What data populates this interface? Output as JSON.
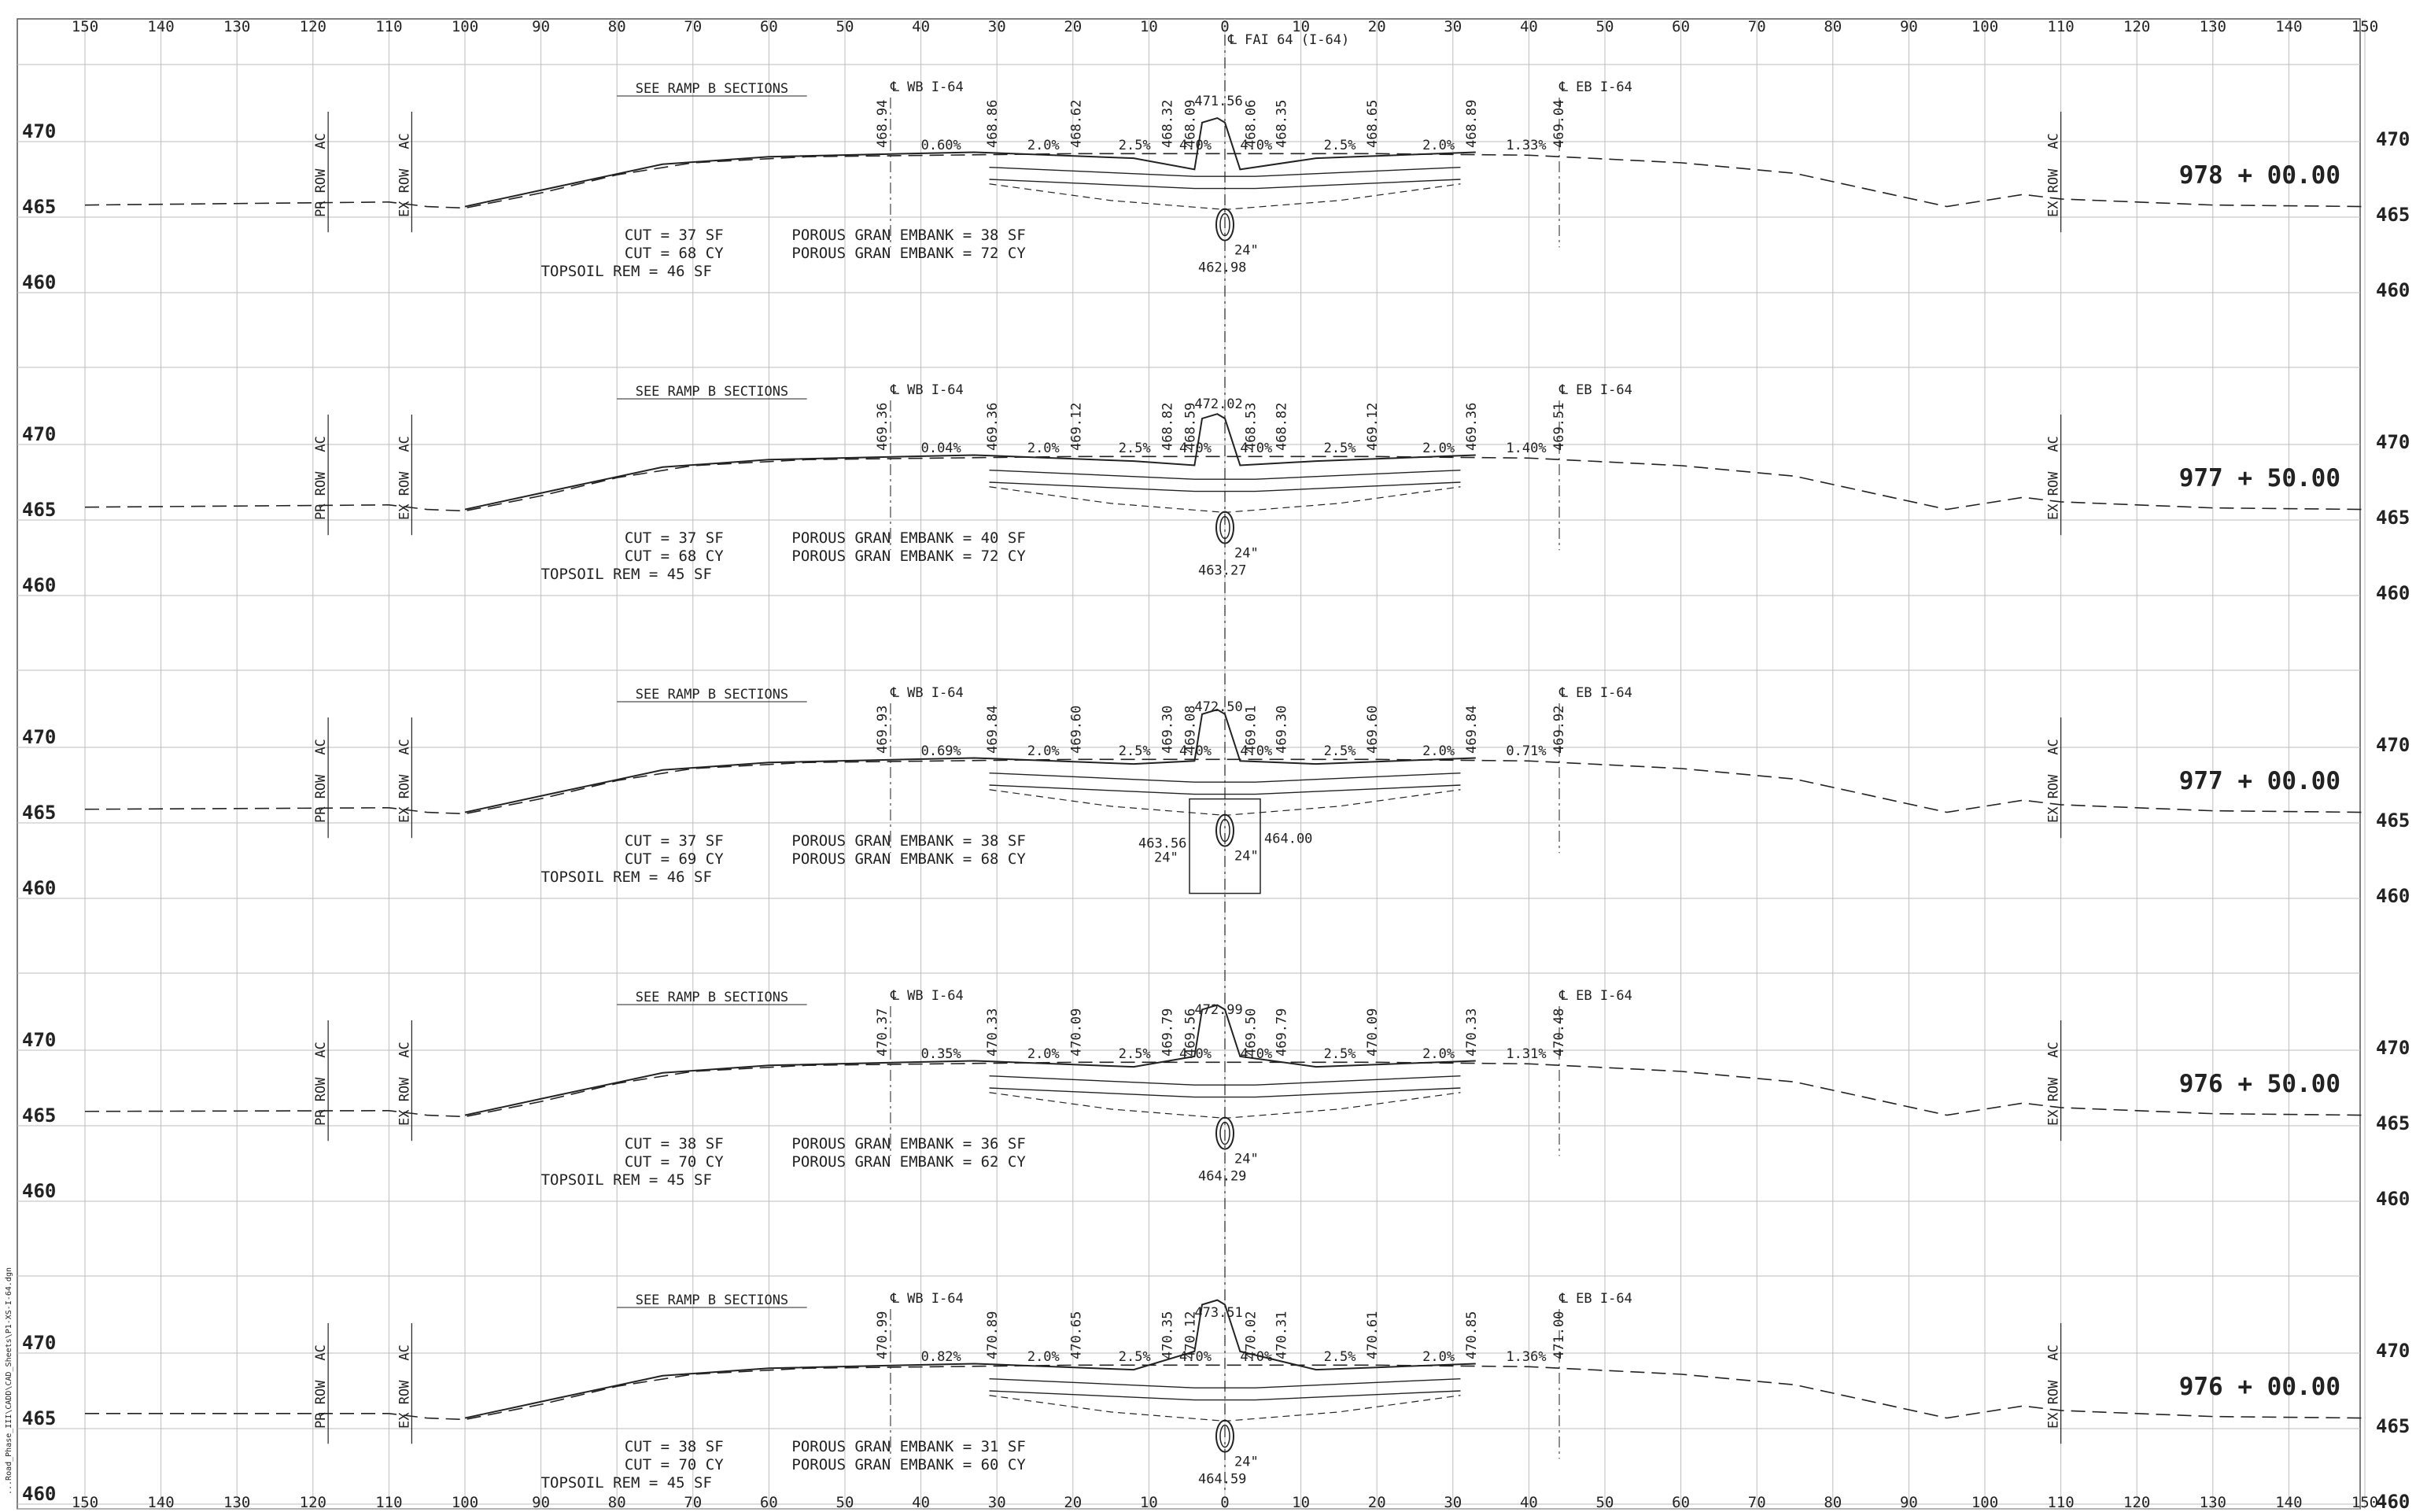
{
  "sheet": {
    "centerline_label": "℄ FAI 64 (I-64)",
    "file_path": "...Road_Phase_III\\CADD\\CAD_Sheets\\P1-XS-I-64.dgn",
    "offset_ticks": [
      "150",
      "140",
      "130",
      "120",
      "110",
      "100",
      "90",
      "80",
      "70",
      "60",
      "50",
      "40",
      "30",
      "20",
      "10",
      "0",
      "10",
      "20",
      "30",
      "40",
      "50",
      "60",
      "70",
      "80",
      "90",
      "100",
      "110",
      "120",
      "130",
      "140",
      "150"
    ],
    "offset_values": [
      -150,
      -140,
      -130,
      -120,
      -110,
      -100,
      -90,
      -80,
      -70,
      -60,
      -50,
      -40,
      -30,
      -20,
      -10,
      0,
      10,
      20,
      30,
      40,
      50,
      60,
      70,
      80,
      90,
      100,
      110,
      120,
      130,
      140,
      150
    ],
    "colors": {
      "grid": "#bdbdbd",
      "ink": "#222222",
      "background": "#ffffff"
    }
  },
  "sections": [
    {
      "station": "978 + 00.00",
      "elev_labels": [
        "470",
        "465",
        "460"
      ],
      "ramp_note": "SEE RAMP B SECTIONS",
      "wb_label": "℄ WB I-64",
      "eb_label": "℄ EB I-64",
      "pr_row": "PR ROW",
      "ex_row": "EX ROW",
      "ac": "AC",
      "crown": "471.56",
      "left_elevs": [
        "468.94",
        "468.86",
        "468.62",
        "468.32",
        "468.09"
      ],
      "right_elevs": [
        "468.06",
        "468.35",
        "468.65",
        "468.89",
        "469.04"
      ],
      "slopes": [
        "0.60%",
        "2.0%",
        "2.5%",
        "4.0%",
        "4.0%",
        "2.5%",
        "2.0%",
        "1.33%"
      ],
      "cut_sf": "CUT = 37 SF",
      "cut_cy": "CUT = 68 CY",
      "topsoil": "TOPSOIL REM = 46 SF",
      "porous_sf": "POROUS GRAN EMBANK = 38 SF",
      "porous_cy": "POROUS GRAN EMBANK = 72 CY",
      "pipe_size": "24\"",
      "pipe_elev": "462.98"
    },
    {
      "station": "977 + 50.00",
      "elev_labels": [
        "470",
        "465",
        "460"
      ],
      "ramp_note": "SEE RAMP B SECTIONS",
      "wb_label": "℄ WB I-64",
      "eb_label": "℄ EB I-64",
      "pr_row": "PR ROW",
      "ex_row": "EX ROW",
      "ac": "AC",
      "crown": "472.02",
      "left_elevs": [
        "469.36",
        "469.36",
        "469.12",
        "468.82",
        "468.59"
      ],
      "right_elevs": [
        "468.53",
        "468.82",
        "469.12",
        "469.36",
        "469.51"
      ],
      "slopes": [
        "0.04%",
        "2.0%",
        "2.5%",
        "4.0%",
        "4.0%",
        "2.5%",
        "2.0%",
        "1.40%"
      ],
      "cut_sf": "CUT = 37 SF",
      "cut_cy": "CUT = 68 CY",
      "topsoil": "TOPSOIL REM = 45 SF",
      "porous_sf": "POROUS GRAN EMBANK = 40 SF",
      "porous_cy": "POROUS GRAN EMBANK = 72 CY",
      "pipe_size": "24\"",
      "pipe_elev": "463.27"
    },
    {
      "station": "977 + 00.00",
      "elev_labels": [
        "470",
        "465",
        "460"
      ],
      "ramp_note": "SEE RAMP B SECTIONS",
      "wb_label": "℄ WB I-64",
      "eb_label": "℄ EB I-64",
      "pr_row": "PR ROW",
      "ex_row": "EX ROW",
      "ac": "AC",
      "crown": "472.50",
      "left_elevs": [
        "469.93",
        "469.84",
        "469.60",
        "469.30",
        "469.08"
      ],
      "right_elevs": [
        "469.01",
        "469.30",
        "469.60",
        "469.84",
        "469.92"
      ],
      "slopes": [
        "0.69%",
        "2.0%",
        "2.5%",
        "4.0%",
        "4.0%",
        "2.5%",
        "2.0%",
        "0.71%"
      ],
      "cut_sf": "CUT = 37 SF",
      "cut_cy": "CUT = 69 CY",
      "topsoil": "TOPSOIL REM = 46 SF",
      "porous_sf": "POROUS GRAN EMBANK = 38 SF",
      "porous_cy": "POROUS GRAN EMBANK = 68 CY",
      "pipe_left_elev": "463.56",
      "pipe_right_elev": "464.00",
      "pipe_size": "24\""
    },
    {
      "station": "976 + 50.00",
      "elev_labels": [
        "470",
        "465",
        "460"
      ],
      "ramp_note": "SEE RAMP B SECTIONS",
      "wb_label": "℄ WB I-64",
      "eb_label": "℄ EB I-64",
      "pr_row": "PR ROW",
      "ex_row": "EX ROW",
      "ac": "AC",
      "crown": "472.99",
      "left_elevs": [
        "470.37",
        "470.33",
        "470.09",
        "469.79",
        "469.56"
      ],
      "right_elevs": [
        "469.50",
        "469.79",
        "470.09",
        "470.33",
        "470.48"
      ],
      "slopes": [
        "0.35%",
        "2.0%",
        "2.5%",
        "4.0%",
        "4.0%",
        "2.5%",
        "2.0%",
        "1.31%"
      ],
      "cut_sf": "CUT = 38 SF",
      "cut_cy": "CUT = 70 CY",
      "topsoil": "TOPSOIL REM = 45 SF",
      "porous_sf": "POROUS GRAN EMBANK = 36 SF",
      "porous_cy": "POROUS GRAN EMBANK = 62 CY",
      "pipe_size": "24\"",
      "pipe_elev": "464.29"
    },
    {
      "station": "976 + 00.00",
      "elev_labels": [
        "470",
        "465",
        "460"
      ],
      "ramp_note": "SEE RAMP B SECTIONS",
      "wb_label": "℄ WB I-64",
      "eb_label": "℄ EB I-64",
      "pr_row": "PR ROW",
      "ex_row": "EX ROW",
      "ac": "AC",
      "crown": "473.51",
      "left_elevs": [
        "470.99",
        "470.89",
        "470.65",
        "470.35",
        "470.12"
      ],
      "right_elevs": [
        "470.02",
        "470.31",
        "470.61",
        "470.85",
        "471.00"
      ],
      "slopes": [
        "0.82%",
        "2.0%",
        "2.5%",
        "4.0%",
        "4.0%",
        "2.5%",
        "2.0%",
        "1.36%"
      ],
      "cut_sf": "CUT = 38 SF",
      "cut_cy": "CUT = 70 CY",
      "topsoil": "TOPSOIL REM = 45 SF",
      "porous_sf": "POROUS GRAN EMBANK = 31 SF",
      "porous_cy": "POROUS GRAN EMBANK = 60 CY",
      "pipe_size": "24\"",
      "pipe_elev": "464.59"
    }
  ]
}
